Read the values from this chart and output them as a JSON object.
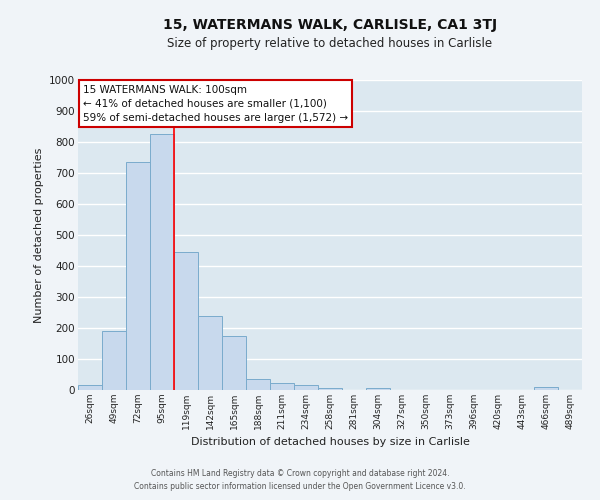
{
  "title": "15, WATERMANS WALK, CARLISLE, CA1 3TJ",
  "subtitle": "Size of property relative to detached houses in Carlisle",
  "xlabel": "Distribution of detached houses by size in Carlisle",
  "ylabel": "Number of detached properties",
  "categories": [
    "26sqm",
    "49sqm",
    "72sqm",
    "95sqm",
    "119sqm",
    "142sqm",
    "165sqm",
    "188sqm",
    "211sqm",
    "234sqm",
    "258sqm",
    "281sqm",
    "304sqm",
    "327sqm",
    "350sqm",
    "373sqm",
    "396sqm",
    "420sqm",
    "443sqm",
    "466sqm",
    "489sqm"
  ],
  "values": [
    15,
    190,
    735,
    825,
    445,
    238,
    175,
    35,
    22,
    17,
    8,
    0,
    8,
    0,
    0,
    0,
    0,
    0,
    0,
    10,
    0
  ],
  "bar_color": "#c8d9ed",
  "bar_edge_color": "#7aabcc",
  "background_color": "#dce8f0",
  "grid_color": "#ffffff",
  "red_line_x": 3.5,
  "annotation_title": "15 WATERMANS WALK: 100sqm",
  "annotation_line1": "← 41% of detached houses are smaller (1,100)",
  "annotation_line2": "59% of semi-detached houses are larger (1,572) →",
  "annotation_box_color": "#ffffff",
  "annotation_box_edge_color": "#cc0000",
  "ylim": [
    0,
    1000
  ],
  "yticks": [
    0,
    100,
    200,
    300,
    400,
    500,
    600,
    700,
    800,
    900,
    1000
  ],
  "footer_line1": "Contains HM Land Registry data © Crown copyright and database right 2024.",
  "footer_line2": "Contains public sector information licensed under the Open Government Licence v3.0."
}
